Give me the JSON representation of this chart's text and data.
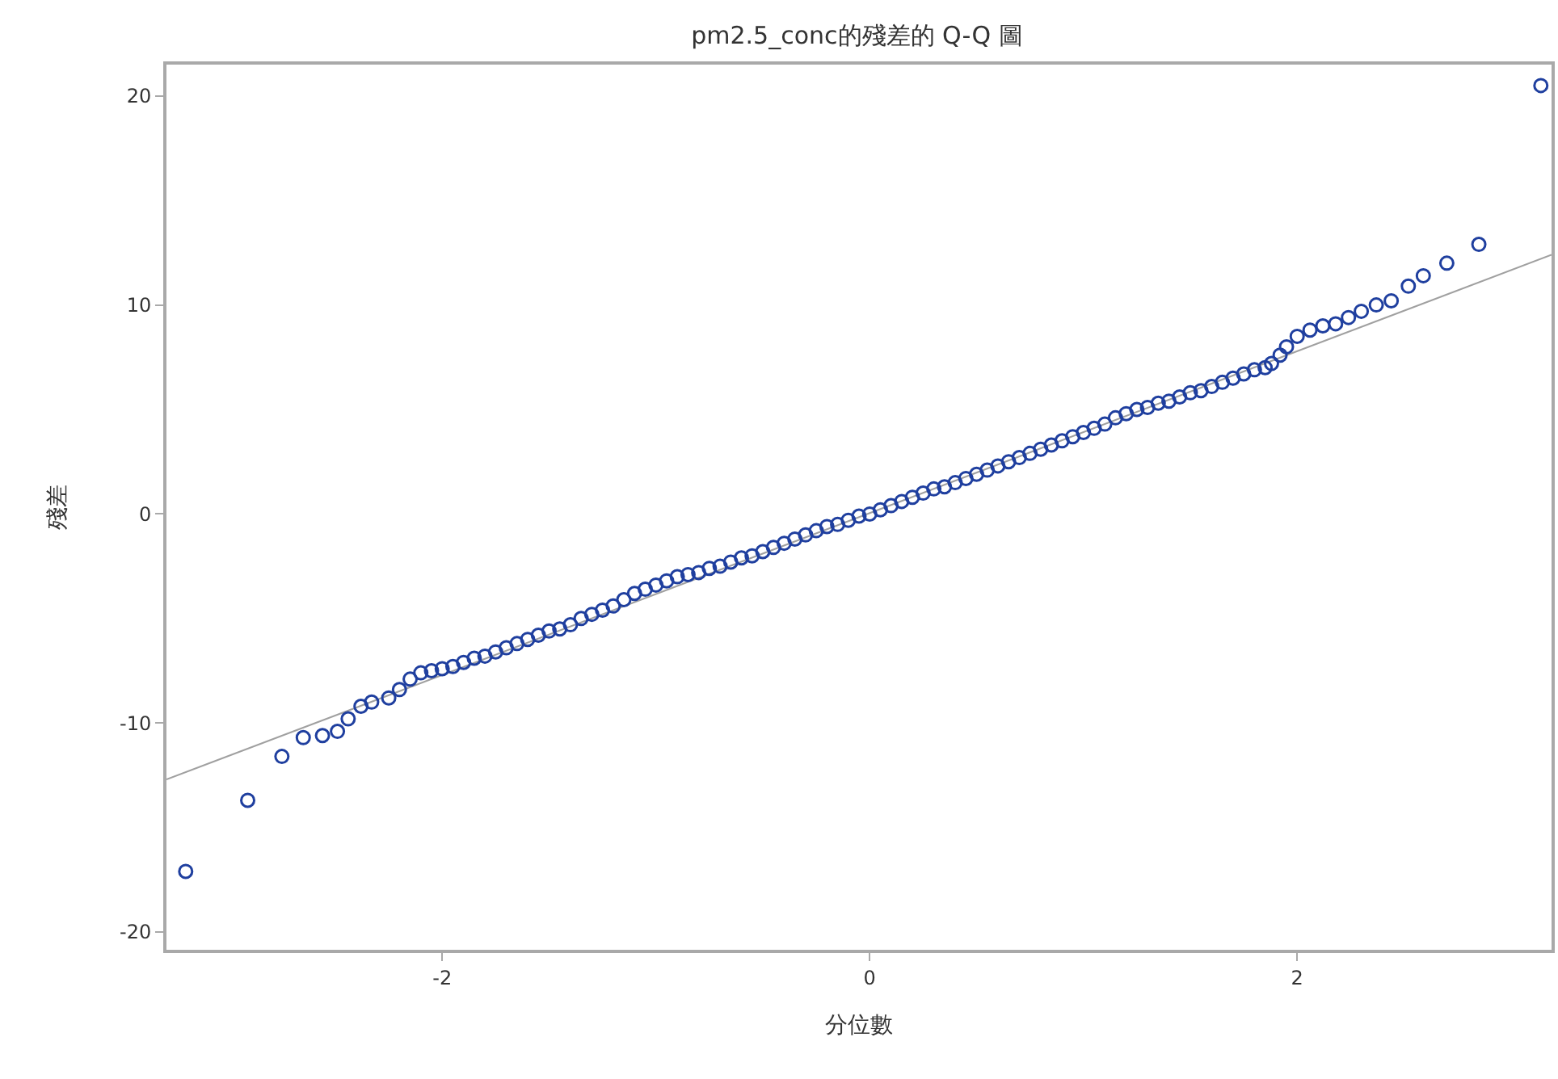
{
  "chart_data": {
    "type": "scatter",
    "title": "pm2.5_conc的殘差的 Q-Q 圖",
    "xlabel": "分位數",
    "ylabel": "殘差",
    "marker": "circle",
    "series": [
      {
        "type": "line",
        "color": "#a0a0a0",
        "marker": "none",
        "x": [
          -3.29,
          3.19
        ],
        "values": [
          -12.7,
          12.4
        ]
      },
      {
        "color": "#1f3f9f",
        "x": [
          -3.2,
          -2.91,
          -2.75,
          -2.65,
          -2.56,
          -2.49,
          -2.44,
          -2.38,
          -2.33,
          -2.25,
          -2.2,
          -2.15,
          -2.1,
          -2.05,
          -2.0,
          -1.95,
          -1.9,
          -1.85,
          -1.8,
          -1.75,
          -1.7,
          -1.65,
          -1.6,
          -1.55,
          -1.5,
          -1.45,
          -1.4,
          -1.35,
          -1.3,
          -1.25,
          -1.2,
          -1.15,
          -1.1,
          -1.05,
          -1.0,
          -0.95,
          -0.9,
          -0.85,
          -0.8,
          -0.75,
          -0.7,
          -0.65,
          -0.6,
          -0.55,
          -0.5,
          -0.45,
          -0.4,
          -0.35,
          -0.3,
          -0.25,
          -0.2,
          -0.15,
          -0.1,
          -0.05,
          0.0,
          0.05,
          0.1,
          0.15,
          0.2,
          0.25,
          0.3,
          0.35,
          0.4,
          0.45,
          0.5,
          0.55,
          0.6,
          0.65,
          0.7,
          0.75,
          0.8,
          0.85,
          0.9,
          0.95,
          1.0,
          1.05,
          1.1,
          1.15,
          1.2,
          1.25,
          1.3,
          1.35,
          1.4,
          1.45,
          1.5,
          1.55,
          1.6,
          1.65,
          1.7,
          1.75,
          1.8,
          1.85,
          1.88,
          1.92,
          1.95,
          2.0,
          2.06,
          2.12,
          2.18,
          2.24,
          2.3,
          2.37,
          2.44,
          2.52,
          2.59,
          2.7,
          2.85,
          3.14
        ],
        "values": [
          -17.1,
          -13.7,
          -11.6,
          -10.7,
          -10.6,
          -10.4,
          -9.8,
          -9.2,
          -9.0,
          -8.8,
          -8.4,
          -7.9,
          -7.6,
          -7.5,
          -7.4,
          -7.3,
          -7.1,
          -6.9,
          -6.8,
          -6.6,
          -6.4,
          -6.2,
          -6.0,
          -5.8,
          -5.6,
          -5.5,
          -5.3,
          -5.0,
          -4.8,
          -4.6,
          -4.4,
          -4.1,
          -3.8,
          -3.6,
          -3.4,
          -3.2,
          -3.0,
          -2.9,
          -2.8,
          -2.6,
          -2.5,
          -2.3,
          -2.1,
          -2.0,
          -1.8,
          -1.6,
          -1.4,
          -1.2,
          -1.0,
          -0.8,
          -0.6,
          -0.5,
          -0.3,
          -0.1,
          0.0,
          0.2,
          0.4,
          0.6,
          0.8,
          1.0,
          1.2,
          1.3,
          1.5,
          1.7,
          1.9,
          2.1,
          2.3,
          2.5,
          2.7,
          2.9,
          3.1,
          3.3,
          3.5,
          3.7,
          3.9,
          4.1,
          4.3,
          4.6,
          4.8,
          5.0,
          5.1,
          5.3,
          5.4,
          5.6,
          5.8,
          5.9,
          6.1,
          6.3,
          6.5,
          6.7,
          6.9,
          7.0,
          7.2,
          7.6,
          8.0,
          8.5,
          8.8,
          9.0,
          9.1,
          9.4,
          9.7,
          10.0,
          10.2,
          10.9,
          11.4,
          12.0,
          12.9,
          20.5
        ]
      }
    ],
    "xlim": [
      -3.29,
      3.19
    ],
    "ylim": [
      -20.85,
      21.5
    ],
    "xticks": [
      -2,
      0,
      2
    ],
    "yticks": [
      -20,
      -10,
      0,
      10,
      20
    ]
  }
}
